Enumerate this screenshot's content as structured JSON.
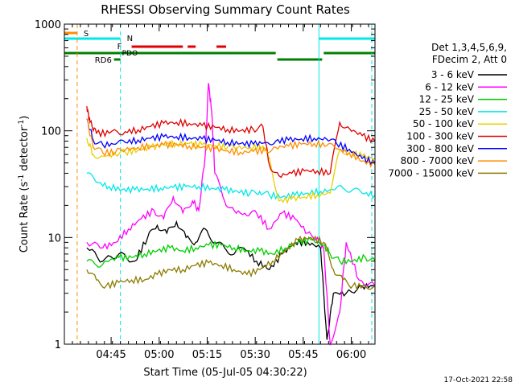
{
  "chart_data": {
    "type": "line",
    "title": "RHESSI Observing Summary Count Rates",
    "xlabel": "Start Time (05-Jul-05 04:30:22)",
    "ylabel": "Count Rate (s",
    "ylabel_sup": "-1",
    "ylabel_tail": " detector",
    "ylabel_sup2": "-1",
    "ylabel_end": ")",
    "y_scale": "log",
    "ylim": [
      1,
      1000
    ],
    "xlim_minutes": [
      0,
      97
    ],
    "x_ticks": [
      {
        "label": "04:45",
        "min": 14.6
      },
      {
        "label": "05:00",
        "min": 29.6
      },
      {
        "label": "05:15",
        "min": 44.6
      },
      {
        "label": "05:30",
        "min": 59.6
      },
      {
        "label": "05:45",
        "min": 74.6
      },
      {
        "label": "06:00",
        "min": 89.6
      }
    ],
    "y_ticks": [
      {
        "label": "1",
        "v": 1
      },
      {
        "label": "10",
        "v": 10
      },
      {
        "label": "100",
        "v": 100
      },
      {
        "label": "1000",
        "v": 1000
      }
    ],
    "legend_header": [
      "Det 1,3,4,5,6,9,",
      "FDecim 2, Att 0"
    ],
    "legend_position": "right",
    "series": [
      {
        "name": "3 - 6 keV",
        "color": "#000000",
        "points": [
          [
            7,
            8
          ],
          [
            12,
            6
          ],
          [
            17,
            7
          ],
          [
            22,
            6
          ],
          [
            26,
            10
          ],
          [
            29,
            13
          ],
          [
            32,
            11
          ],
          [
            35,
            14
          ],
          [
            38,
            10
          ],
          [
            41,
            9
          ],
          [
            44,
            12
          ],
          [
            47,
            9
          ],
          [
            50,
            8
          ],
          [
            53,
            7
          ],
          [
            56,
            8
          ],
          [
            60,
            6
          ],
          [
            64,
            5
          ],
          [
            68,
            7
          ],
          [
            72,
            9
          ],
          [
            76,
            9
          ],
          [
            80,
            8
          ],
          [
            82,
            1.1
          ],
          [
            84,
            3
          ],
          [
            88,
            3
          ],
          [
            93,
            3.5
          ],
          [
            97,
            3.5
          ]
        ]
      },
      {
        "name": "6 - 12 keV",
        "color": "#ff00ff",
        "points": [
          [
            7,
            9
          ],
          [
            12,
            8
          ],
          [
            16,
            9
          ],
          [
            20,
            12
          ],
          [
            24,
            15
          ],
          [
            28,
            18
          ],
          [
            31,
            15
          ],
          [
            34,
            24
          ],
          [
            37,
            17
          ],
          [
            40,
            22
          ],
          [
            42,
            18
          ],
          [
            44,
            60
          ],
          [
            45,
            280
          ],
          [
            46,
            150
          ],
          [
            47,
            40
          ],
          [
            50,
            22
          ],
          [
            53,
            18
          ],
          [
            57,
            16
          ],
          [
            60,
            17
          ],
          [
            64,
            12
          ],
          [
            68,
            17
          ],
          [
            72,
            15
          ],
          [
            76,
            11
          ],
          [
            79,
            10
          ],
          [
            81,
            8
          ],
          [
            83,
            1.0
          ],
          [
            86,
            2
          ],
          [
            88,
            9
          ],
          [
            92,
            4
          ],
          [
            97,
            3.5
          ]
        ]
      },
      {
        "name": "12 - 25 keV",
        "color": "#00d000",
        "points": [
          [
            7,
            6
          ],
          [
            10,
            5.5
          ],
          [
            13,
            6
          ],
          [
            17,
            6.5
          ],
          [
            21,
            6.5
          ],
          [
            25,
            7
          ],
          [
            29,
            7.5
          ],
          [
            33,
            8
          ],
          [
            37,
            7.5
          ],
          [
            41,
            8
          ],
          [
            45,
            8.5
          ],
          [
            49,
            8.5
          ],
          [
            53,
            8
          ],
          [
            57,
            7.5
          ],
          [
            61,
            7.5
          ],
          [
            65,
            7
          ],
          [
            69,
            8
          ],
          [
            73,
            9
          ],
          [
            77,
            9.5
          ],
          [
            81,
            8.5
          ],
          [
            83,
            7
          ],
          [
            86,
            6
          ],
          [
            90,
            6
          ],
          [
            94,
            6.5
          ],
          [
            97,
            6
          ]
        ]
      },
      {
        "name": "25 - 50 keV",
        "color": "#00e8e8",
        "points": [
          [
            7,
            40
          ],
          [
            10,
            33
          ],
          [
            14,
            30
          ],
          [
            18,
            28
          ],
          [
            22,
            28
          ],
          [
            26,
            28.5
          ],
          [
            30,
            29
          ],
          [
            34,
            29.5
          ],
          [
            38,
            30
          ],
          [
            42,
            30
          ],
          [
            46,
            29
          ],
          [
            50,
            28
          ],
          [
            54,
            27
          ],
          [
            58,
            26
          ],
          [
            61,
            27
          ],
          [
            64,
            25
          ],
          [
            68,
            24
          ],
          [
            72,
            25
          ],
          [
            76,
            26
          ],
          [
            80,
            27
          ],
          [
            84,
            28
          ],
          [
            87,
            29
          ],
          [
            90,
            28
          ],
          [
            93,
            26
          ],
          [
            97,
            25
          ]
        ]
      },
      {
        "name": "50 - 100 keV",
        "color": "#e8d000",
        "points": [
          [
            7,
            85
          ],
          [
            9,
            60
          ],
          [
            12,
            58
          ],
          [
            16,
            60
          ],
          [
            19,
            63
          ],
          [
            23,
            66
          ],
          [
            27,
            70
          ],
          [
            31,
            74
          ],
          [
            35,
            76
          ],
          [
            39,
            76
          ],
          [
            43,
            74
          ],
          [
            47,
            73
          ],
          [
            51,
            70
          ],
          [
            54,
            69
          ],
          [
            58,
            70
          ],
          [
            62,
            72
          ],
          [
            64,
            56
          ],
          [
            67,
            22
          ],
          [
            71,
            23
          ],
          [
            75,
            24
          ],
          [
            79,
            25
          ],
          [
            83,
            26
          ],
          [
            86,
            66
          ],
          [
            89,
            63
          ],
          [
            93,
            58
          ],
          [
            97,
            55
          ]
        ]
      },
      {
        "name": "100 - 300 keV",
        "color": "#e00000",
        "points": [
          [
            7,
            170
          ],
          [
            8,
            120
          ],
          [
            10,
            95
          ],
          [
            14,
            95
          ],
          [
            19,
            98
          ],
          [
            23,
            102
          ],
          [
            27,
            110
          ],
          [
            31,
            118
          ],
          [
            35,
            120
          ],
          [
            39,
            117
          ],
          [
            43,
            112
          ],
          [
            47,
            108
          ],
          [
            51,
            103
          ],
          [
            55,
            100
          ],
          [
            59,
            103
          ],
          [
            62,
            110
          ],
          [
            64,
            48
          ],
          [
            67,
            38
          ],
          [
            71,
            40
          ],
          [
            75,
            42
          ],
          [
            79,
            42
          ],
          [
            83,
            40
          ],
          [
            86,
            120
          ],
          [
            89,
            105
          ],
          [
            93,
            90
          ],
          [
            97,
            80
          ]
        ]
      },
      {
        "name": "300 - 800 keV",
        "color": "#0000ff",
        "points": [
          [
            7,
            130
          ],
          [
            9,
            82
          ],
          [
            12,
            74
          ],
          [
            16,
            75
          ],
          [
            19,
            78
          ],
          [
            23,
            82
          ],
          [
            27,
            85
          ],
          [
            31,
            88
          ],
          [
            35,
            88
          ],
          [
            39,
            86
          ],
          [
            43,
            84
          ],
          [
            47,
            82
          ],
          [
            51,
            78
          ],
          [
            55,
            76
          ],
          [
            59,
            75
          ],
          [
            63,
            78
          ],
          [
            66,
            80
          ],
          [
            70,
            82
          ],
          [
            74,
            84
          ],
          [
            78,
            85
          ],
          [
            82,
            83
          ],
          [
            85,
            76
          ],
          [
            89,
            67
          ],
          [
            93,
            55
          ],
          [
            97,
            50
          ]
        ]
      },
      {
        "name": "800 - 7000 keV",
        "color": "#ff8c00",
        "points": [
          [
            7,
            130
          ],
          [
            9,
            70
          ],
          [
            12,
            62
          ],
          [
            16,
            63
          ],
          [
            19,
            66
          ],
          [
            23,
            70
          ],
          [
            27,
            72
          ],
          [
            31,
            74
          ],
          [
            35,
            74
          ],
          [
            39,
            72
          ],
          [
            43,
            70
          ],
          [
            47,
            68
          ],
          [
            51,
            65
          ],
          [
            55,
            63
          ],
          [
            59,
            64
          ],
          [
            63,
            66
          ],
          [
            66,
            70
          ],
          [
            70,
            72
          ],
          [
            74,
            75
          ],
          [
            78,
            76
          ],
          [
            82,
            73
          ],
          [
            85,
            68
          ],
          [
            89,
            62
          ],
          [
            93,
            52
          ],
          [
            97,
            48
          ]
        ]
      },
      {
        "name": "7000 - 15000 keV",
        "color": "#8c7a00",
        "points": [
          [
            7,
            5
          ],
          [
            10,
            4
          ],
          [
            13,
            3.5
          ],
          [
            17,
            3.8
          ],
          [
            21,
            4
          ],
          [
            25,
            4
          ],
          [
            29,
            4.5
          ],
          [
            33,
            5
          ],
          [
            37,
            5
          ],
          [
            41,
            5.5
          ],
          [
            45,
            5.8
          ],
          [
            49,
            5.5
          ],
          [
            53,
            5
          ],
          [
            57,
            4.5
          ],
          [
            61,
            5
          ],
          [
            65,
            6
          ],
          [
            69,
            7.5
          ],
          [
            73,
            9.5
          ],
          [
            77,
            10
          ],
          [
            81,
            9
          ],
          [
            84,
            5
          ],
          [
            87,
            4
          ],
          [
            90,
            3.5
          ],
          [
            94,
            3.5
          ],
          [
            97,
            3.5
          ]
        ]
      }
    ],
    "state_bars": [
      {
        "label": "S",
        "color": "#ff8c00"
      },
      {
        "label": "N",
        "color": "#00e8e8"
      },
      {
        "label": "F",
        "color": "#e00000"
      },
      {
        "label": "RD6",
        "color": "#008000"
      },
      {
        "label": "PDO",
        "color": "#008000"
      }
    ],
    "footer_date": "17-Oct-2021 22:58"
  }
}
